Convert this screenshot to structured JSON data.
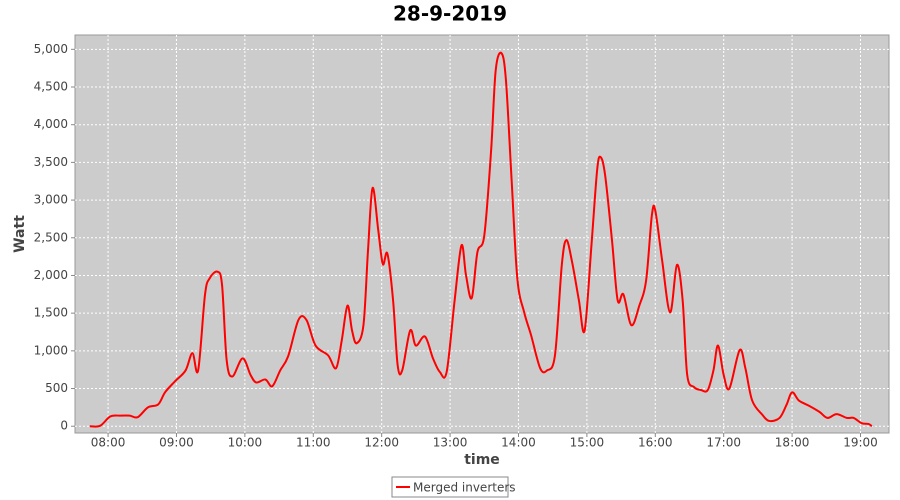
{
  "chart_data": {
    "type": "line",
    "title": "28-9-2019",
    "x_label": "time",
    "y_label": "Watt",
    "x": [
      "07:44",
      "07:53",
      "08:02",
      "08:11",
      "08:19",
      "08:26",
      "08:35",
      "08:44",
      "08:50",
      "08:59",
      "09:08",
      "09:14",
      "09:19",
      "09:25",
      "09:29",
      "09:36",
      "09:40",
      "09:44",
      "09:49",
      "09:58",
      "10:05",
      "10:10",
      "10:18",
      "10:24",
      "10:31",
      "10:38",
      "10:47",
      "10:54",
      "11:02",
      "11:13",
      "11:20",
      "11:25",
      "11:30",
      "11:34",
      "11:38",
      "11:44",
      "11:48",
      "11:52",
      "11:57",
      "12:01",
      "12:05",
      "12:10",
      "12:14",
      "12:18",
      "12:25",
      "12:30",
      "12:38",
      "12:45",
      "12:51",
      "12:57",
      "13:04",
      "13:10",
      "13:14",
      "13:19",
      "13:24",
      "13:30",
      "13:36",
      "13:40",
      "13:45",
      "13:49",
      "13:54",
      "13:59",
      "14:05",
      "14:11",
      "14:19",
      "14:25",
      "14:32",
      "14:38",
      "14:42",
      "14:47",
      "14:53",
      "14:58",
      "15:04",
      "15:09",
      "15:12",
      "15:16",
      "15:22",
      "15:27",
      "15:32",
      "15:39",
      "15:46",
      "15:52",
      "15:57",
      "16:00",
      "16:06",
      "16:13",
      "16:19",
      "16:24",
      "16:28",
      "16:34",
      "16:40",
      "16:46",
      "16:51",
      "16:55",
      "17:00",
      "17:05",
      "17:14",
      "17:19",
      "17:25",
      "17:34",
      "17:40",
      "17:49",
      "17:55",
      "18:00",
      "18:06",
      "18:15",
      "18:24",
      "18:31",
      "18:39",
      "18:48",
      "18:54",
      "19:01",
      "19:07",
      "19:10"
    ],
    "series": [
      {
        "name": "Merged inverters",
        "color": "#ff0000",
        "values": [
          0,
          5,
          130,
          140,
          140,
          120,
          250,
          290,
          450,
          600,
          740,
          970,
          740,
          1740,
          1960,
          2050,
          1870,
          880,
          660,
          900,
          680,
          580,
          620,
          530,
          740,
          930,
          1410,
          1410,
          1070,
          940,
          770,
          1140,
          1600,
          1270,
          1100,
          1340,
          2330,
          3160,
          2600,
          2150,
          2290,
          1670,
          810,
          740,
          1270,
          1070,
          1190,
          900,
          720,
          720,
          1670,
          2400,
          2000,
          1700,
          2310,
          2530,
          3660,
          4720,
          4950,
          4590,
          3260,
          1960,
          1510,
          1210,
          770,
          740,
          940,
          2140,
          2470,
          2180,
          1670,
          1270,
          2400,
          3400,
          3570,
          3330,
          2470,
          1670,
          1750,
          1340,
          1600,
          1940,
          2800,
          2860,
          2200,
          1510,
          2140,
          1670,
          680,
          520,
          480,
          480,
          740,
          1070,
          680,
          500,
          1010,
          770,
          340,
          150,
          70,
          110,
          280,
          450,
          340,
          270,
          190,
          110,
          160,
          110,
          110,
          40,
          30,
          0
        ]
      }
    ],
    "xlim": [
      "07:31",
      "19:25"
    ],
    "xticks": [
      "08:00",
      "09:00",
      "10:00",
      "11:00",
      "12:00",
      "13:00",
      "14:00",
      "15:00",
      "16:00",
      "17:00",
      "18:00",
      "19:00"
    ],
    "ylim": [
      -90,
      5190
    ],
    "yticks": [
      0,
      500,
      {
        "value": 1000,
        "label": "1,000"
      },
      {
        "value": 1500,
        "label": "1,500"
      },
      {
        "value": 2000,
        "label": "2,000"
      },
      {
        "value": 2500,
        "label": "2,500"
      },
      {
        "value": 3000,
        "label": "3,000"
      },
      {
        "value": 3500,
        "label": "3,500"
      },
      {
        "value": 4000,
        "label": "4,000"
      },
      {
        "value": 4500,
        "label": "4,500"
      },
      {
        "value": 5000,
        "label": "5,000"
      }
    ],
    "grid": true,
    "legend": "bottom"
  }
}
